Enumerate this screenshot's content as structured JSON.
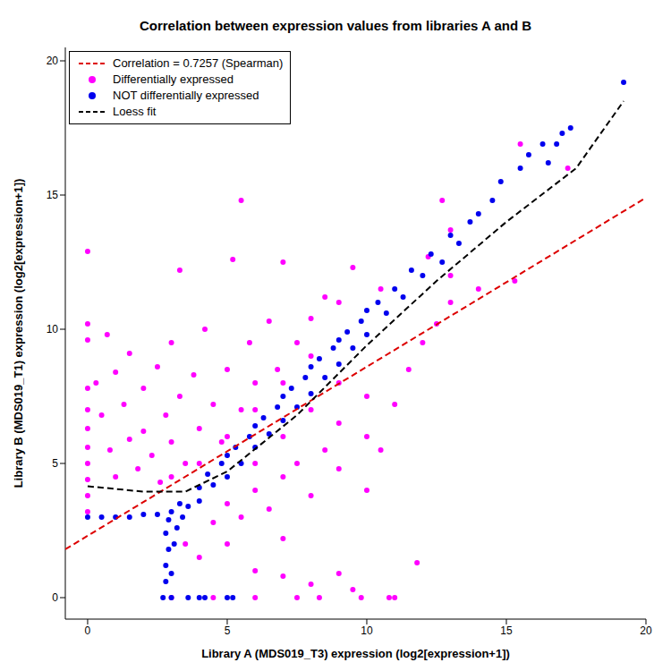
{
  "chart_data": {
    "type": "scatter",
    "title": "Correlation between expression values from libraries A and B",
    "x_label": "Library A (MDS019_T3) expression (log2[expression+1])",
    "y_label": "Library B (MDS019_T1) expression (log2[expression+1])",
    "xlim": [
      -0.8,
      20
    ],
    "ylim": [
      -0.8,
      20.5
    ],
    "xticks": [
      0,
      5,
      10,
      15,
      20
    ],
    "yticks": [
      0,
      5,
      10,
      15,
      20
    ],
    "grid": false,
    "legend": "top-left",
    "series": [
      {
        "name": "Correlation = 0.7257 (Spearman)",
        "type": "line",
        "line_style": "dashed",
        "color": "#dd0000",
        "x": [
          -0.8,
          20
        ],
        "values": [
          1.8,
          14.9
        ]
      },
      {
        "name": "Differentially expressed",
        "type": "scatter",
        "marker": "circle",
        "color": "#ff00ff",
        "x": [
          0,
          0,
          0,
          0,
          0,
          0,
          0,
          0,
          0,
          0,
          0,
          0.3,
          0.5,
          0.7,
          0.8,
          1.0,
          1.0,
          1.3,
          1.5,
          1.5,
          1.8,
          2.0,
          2.0,
          2.3,
          2.5,
          2.6,
          2.8,
          3.0,
          3.0,
          3.3,
          3.3,
          3.5,
          3.8,
          4.0,
          4.2,
          4.5,
          4.8,
          5.0,
          5.2,
          5.5,
          5.5,
          5.8,
          6.0,
          6.5,
          6.8,
          7.0,
          7.5,
          8.0,
          8.5,
          9.0,
          9.5,
          10.5,
          12.2,
          12.7,
          13.0,
          15.5,
          17.2,
          3.5,
          4,
          4.5,
          5,
          5,
          5.5,
          6,
          6,
          6.5,
          7,
          7,
          7.5,
          8,
          8,
          8.5,
          9,
          9,
          9.5,
          10,
          10,
          10.5,
          11,
          11,
          11.5,
          11.8,
          12,
          12.5,
          13,
          13,
          14,
          15.3,
          10.8,
          3,
          4.5,
          6.0,
          7.5,
          8.3,
          9,
          7,
          10,
          9.8,
          5,
          6,
          7,
          8,
          6,
          7,
          8,
          9,
          4,
          3
        ],
        "values": [
          12.9,
          10.2,
          9.6,
          7.8,
          7.0,
          6.3,
          5.6,
          5.0,
          4.4,
          3.8,
          3.2,
          8.0,
          6.8,
          9.8,
          5.5,
          4.5,
          8.4,
          7.2,
          9.1,
          5.9,
          4.8,
          7.8,
          6.2,
          5.3,
          8.6,
          4.3,
          6.8,
          5.8,
          9.5,
          12.2,
          7.5,
          5.0,
          8.3,
          6.3,
          10.0,
          7.2,
          5.8,
          8.5,
          12.6,
          14.8,
          7.0,
          9.5,
          8.0,
          10.3,
          8.5,
          12.5,
          9.5,
          10.4,
          11.2,
          11.0,
          12.3,
          11.5,
          12.7,
          14.8,
          13.7,
          16.9,
          16.0,
          2.0,
          1.5,
          2.8,
          2.0,
          3.5,
          3.0,
          1.0,
          4.0,
          3.3,
          4.5,
          2.2,
          5.0,
          3.8,
          0.5,
          5.5,
          4.8,
          6.5,
          0.3,
          6.0,
          7.5,
          5.5,
          0,
          7.2,
          8.5,
          1.3,
          9.5,
          10.2,
          11.0,
          12.0,
          11.5,
          11.8,
          0,
          0,
          0,
          0,
          0,
          0,
          0.9,
          0.8,
          4.0,
          0,
          6.0,
          7.0,
          8.0,
          9.0,
          5.0,
          6.0,
          7.0,
          8.0,
          5.0,
          4.5
        ]
      },
      {
        "name": "NOT differentially expressed",
        "type": "scatter",
        "marker": "circle",
        "color": "#0000ee",
        "x": [
          3.0,
          3.3,
          3.6,
          4,
          4,
          4.3,
          4.5,
          4.8,
          5,
          5,
          5.3,
          5.5,
          5.8,
          6,
          6,
          6.3,
          6.5,
          6.8,
          7,
          7,
          7.3,
          7.5,
          7.8,
          8,
          8,
          8.3,
          8.5,
          8.8,
          9,
          9,
          9.3,
          9.5,
          9.8,
          10,
          10,
          10.4,
          10.7,
          11,
          11.3,
          11.6,
          12,
          12.3,
          12.7,
          13,
          13.3,
          13.7,
          14,
          14.5,
          14.8,
          15.5,
          15.8,
          16.3,
          16.8,
          17.0,
          17.3,
          16.5,
          19.2,
          2.7,
          2.8,
          2.8,
          2.9,
          2.8,
          2.9,
          3.0,
          3.1,
          3.2,
          3.4,
          3.6,
          4.2,
          5,
          3.0,
          4.0,
          5.2,
          0,
          0.5,
          1,
          1.5,
          2,
          2.5
        ],
        "values": [
          3.2,
          3.5,
          3.4,
          4.1,
          3.6,
          4.6,
          4.2,
          5.0,
          4.5,
          5.3,
          5.6,
          5.0,
          6.0,
          5.6,
          6.4,
          6.7,
          6.1,
          7.1,
          6.6,
          7.5,
          7.8,
          7.1,
          8.2,
          7.6,
          8.6,
          8.9,
          8.2,
          9.3,
          8.7,
          9.6,
          9.9,
          9.3,
          10.3,
          9.8,
          10.7,
          11.0,
          10.6,
          11.5,
          11.2,
          12.2,
          12.0,
          12.8,
          12.5,
          13.5,
          13.2,
          14.0,
          14.3,
          14.8,
          15.5,
          16.0,
          16.5,
          16.9,
          16.9,
          17.3,
          17.5,
          16.2,
          19.2,
          0,
          0.6,
          1.2,
          1.8,
          2.4,
          2.9,
          0.9,
          2.0,
          2.6,
          3.0,
          0,
          0,
          0,
          0,
          0,
          0,
          3.0,
          3.0,
          3.0,
          3.0,
          3.1,
          3.1
        ]
      },
      {
        "name": "Loess fit",
        "type": "line",
        "line_style": "dashed",
        "color": "#000000",
        "x": [
          0,
          2,
          3.5,
          5,
          7.5,
          10,
          12.5,
          15,
          17.5,
          19.2
        ],
        "values": [
          4.15,
          3.95,
          3.95,
          4.7,
          6.8,
          9.4,
          11.8,
          14.0,
          16.0,
          18.5
        ]
      }
    ]
  }
}
